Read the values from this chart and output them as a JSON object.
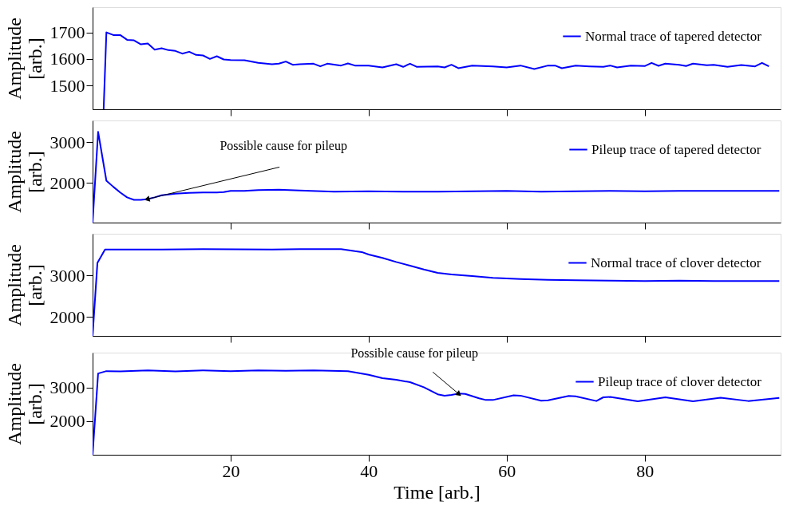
{
  "chart_data": [
    {
      "type": "line",
      "ylabel": "Amplitude\n[arb.]",
      "legend": "top right",
      "tick_labels": "y",
      "xlim": [
        0,
        99.7
      ],
      "xticks": [
        20,
        40,
        60,
        80
      ],
      "ylim": [
        1410,
        1795
      ],
      "yticks": [
        1500,
        1600,
        1700
      ],
      "series": [
        {
          "name": "Normal trace of tapered detector",
          "color": "#0000ff",
          "x": [
            1.6,
            2,
            3,
            4,
            5,
            6,
            7,
            8,
            9,
            10,
            11,
            12,
            13,
            14,
            15,
            16,
            17,
            18,
            19,
            20,
            22,
            24,
            26,
            27,
            28,
            29,
            30,
            32,
            33,
            34,
            36,
            37,
            38,
            40,
            42,
            44,
            45,
            46,
            47,
            50,
            51,
            52,
            53,
            55,
            58,
            60,
            62,
            64,
            66,
            67,
            68,
            70,
            72,
            74,
            75,
            76,
            78,
            80,
            81,
            82,
            83,
            85,
            86,
            87,
            89,
            90,
            92,
            94,
            96,
            97,
            98
          ],
          "values": [
            1410,
            1700,
            1690,
            1690,
            1672,
            1670,
            1655,
            1658,
            1635,
            1640,
            1633,
            1630,
            1620,
            1627,
            1615,
            1613,
            1600,
            1610,
            1598,
            1596,
            1595,
            1585,
            1580,
            1582,
            1590,
            1578,
            1580,
            1582,
            1572,
            1582,
            1575,
            1583,
            1575,
            1575,
            1568,
            1580,
            1570,
            1582,
            1570,
            1572,
            1568,
            1578,
            1565,
            1575,
            1572,
            1568,
            1575,
            1562,
            1575,
            1575,
            1565,
            1575,
            1572,
            1570,
            1575,
            1568,
            1575,
            1573,
            1585,
            1574,
            1582,
            1578,
            1573,
            1582,
            1576,
            1578,
            1570,
            1577,
            1572,
            1585,
            1572
          ]
        }
      ]
    },
    {
      "type": "line",
      "ylabel": "Amplitude\n[arb.]",
      "legend": "top right",
      "tick_labels": "y",
      "xlim": [
        0,
        99.7
      ],
      "xticks": [
        20,
        40,
        60,
        80
      ],
      "ylim": [
        1020,
        3530
      ],
      "yticks": [
        2000,
        3000
      ],
      "annotations": [
        {
          "text": "Possible cause for pileup",
          "x": 8,
          "y": 1600
        }
      ],
      "series": [
        {
          "name": "Pileup trace of tapered detector",
          "color": "#0000ff",
          "x": [
            0,
            0.8,
            2,
            3,
            4,
            5,
            6,
            7,
            8,
            9,
            10,
            12,
            14,
            16,
            18,
            19,
            20,
            22,
            24,
            27,
            30,
            35,
            40,
            45,
            50,
            55,
            60,
            65,
            70,
            75,
            80,
            85,
            90,
            95,
            99.5
          ],
          "values": [
            1020,
            3250,
            2050,
            1900,
            1760,
            1640,
            1580,
            1580,
            1600,
            1640,
            1690,
            1730,
            1750,
            1760,
            1760,
            1770,
            1800,
            1800,
            1820,
            1830,
            1810,
            1780,
            1790,
            1780,
            1780,
            1790,
            1800,
            1780,
            1790,
            1800,
            1790,
            1800,
            1800,
            1800,
            1800
          ]
        }
      ]
    },
    {
      "type": "line",
      "ylabel": "Amplitude\n[arb.]",
      "legend": "top right",
      "tick_labels": "y",
      "xlim": [
        0,
        99.7
      ],
      "xticks": [
        20,
        40,
        60,
        80
      ],
      "ylim": [
        1540,
        4000
      ],
      "yticks": [
        2000,
        3000
      ],
      "series": [
        {
          "name": "Normal trace of clover detector",
          "color": "#0000ff",
          "x": [
            0,
            0.7,
            1.8,
            10,
            16,
            26,
            30,
            36,
            38,
            39,
            40,
            42,
            44,
            46,
            48,
            50,
            52,
            55,
            58,
            62,
            66,
            70,
            75,
            80,
            85,
            90,
            95,
            99.5
          ],
          "values": [
            1540,
            3300,
            3620,
            3620,
            3630,
            3620,
            3630,
            3630,
            3580,
            3560,
            3500,
            3420,
            3320,
            3230,
            3140,
            3060,
            3020,
            2980,
            2940,
            2910,
            2890,
            2880,
            2870,
            2860,
            2870,
            2860,
            2860,
            2860
          ]
        }
      ]
    },
    {
      "type": "line",
      "ylabel": "Amplitude\n[arb.]",
      "xlabel": "Time [arb.]",
      "legend": "top right",
      "xlim": [
        0,
        99.7
      ],
      "xticks": [
        20,
        40,
        60,
        80
      ],
      "ylim": [
        1000,
        4040
      ],
      "yticks": [
        2000,
        3000
      ],
      "annotations": [
        {
          "text": "Possible cause for pileup",
          "x": 53,
          "y": 2820
        }
      ],
      "series": [
        {
          "name": "Pileup trace of clover detector",
          "color": "#0000ff",
          "x": [
            0,
            0.8,
            2,
            4,
            8,
            12,
            16,
            20,
            24,
            28,
            32,
            37,
            40,
            42,
            44,
            46,
            48,
            50,
            51,
            52,
            53,
            54,
            56,
            57,
            58,
            61,
            62,
            65,
            66,
            69,
            70,
            73,
            74,
            75,
            79,
            83,
            87,
            91,
            95,
            99.5
          ],
          "values": [
            1000,
            3420,
            3490,
            3480,
            3510,
            3480,
            3510,
            3490,
            3510,
            3500,
            3510,
            3490,
            3380,
            3280,
            3230,
            3160,
            3010,
            2800,
            2760,
            2780,
            2820,
            2810,
            2680,
            2630,
            2630,
            2770,
            2760,
            2610,
            2620,
            2750,
            2740,
            2600,
            2710,
            2720,
            2590,
            2710,
            2590,
            2700,
            2600,
            2690
          ]
        }
      ]
    }
  ]
}
